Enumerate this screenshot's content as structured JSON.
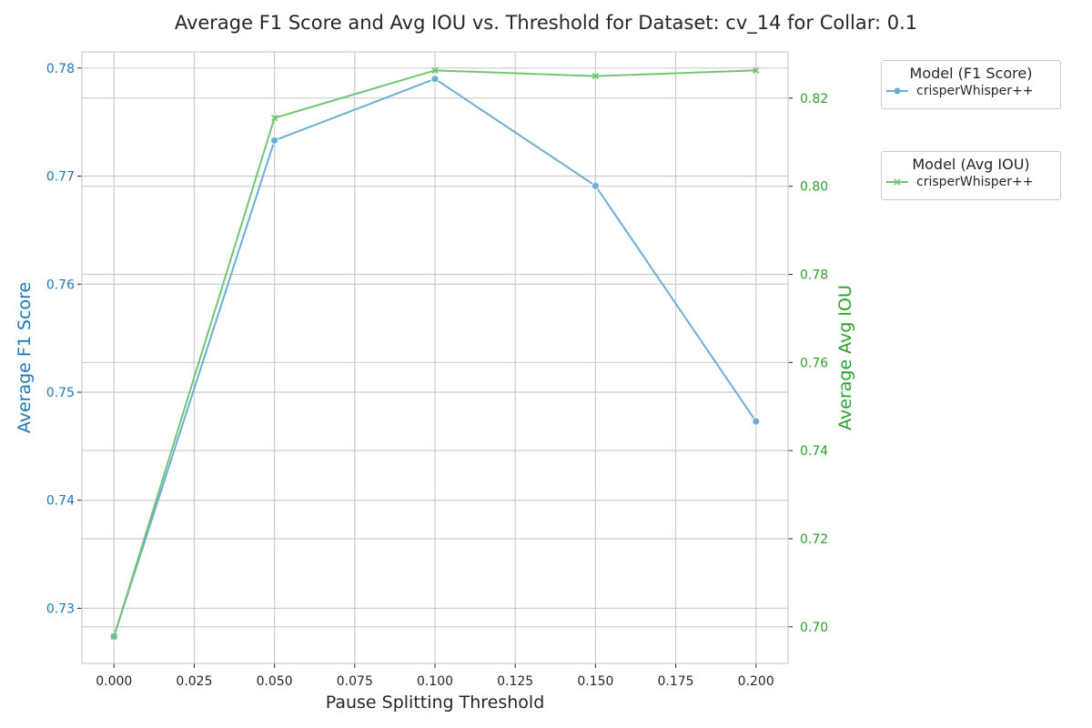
{
  "chart_data": {
    "type": "line",
    "title": "Average F1 Score and Avg IOU vs. Threshold for Dataset: cv_14 for Collar: 0.1",
    "xlabel": "Pause Splitting Threshold",
    "ylabel_left": "Average F1 Score",
    "ylabel_right": "Average Avg IOU",
    "x": [
      0.0,
      0.05,
      0.1,
      0.15,
      0.2
    ],
    "x_ticks": [
      "0.000",
      "0.025",
      "0.050",
      "0.075",
      "0.100",
      "0.125",
      "0.150",
      "0.175",
      "0.200"
    ],
    "xlim": [
      -0.01,
      0.21
    ],
    "left_ticks": [
      "0.73",
      "0.74",
      "0.75",
      "0.76",
      "0.77",
      "0.78"
    ],
    "left_ylim": [
      0.7249,
      0.7815
    ],
    "right_ticks": [
      "0.70",
      "0.72",
      "0.74",
      "0.76",
      "0.78",
      "0.80",
      "0.82"
    ],
    "right_ylim": [
      0.6917,
      0.8305
    ],
    "grid": true,
    "legend_placement": "outside-right",
    "series": [
      {
        "legend_title": "Model (F1 Score)",
        "name": "crisperWhisper++",
        "axis": "left",
        "marker": "circle",
        "color": "#6baed6",
        "values": [
          0.7274,
          0.7733,
          0.779,
          0.7691,
          0.7473
        ]
      },
      {
        "legend_title": "Model (Avg IOU)",
        "name": "crisperWhisper++",
        "axis": "right",
        "marker": "x",
        "color": "#74c476",
        "values": [
          0.6978,
          0.8155,
          0.8263,
          0.825,
          0.8263
        ]
      }
    ],
    "colors": {
      "left_axis": "#1f77b4",
      "right_axis": "#2ca02c",
      "grid": "#cccccc",
      "text": "#262626"
    }
  }
}
